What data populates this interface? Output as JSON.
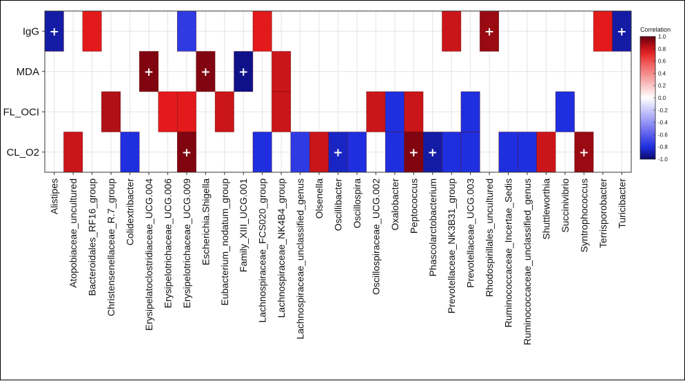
{
  "chart_data": {
    "type": "heatmap",
    "title": "",
    "xlabel": "",
    "ylabel": "",
    "rows": [
      "IgG",
      "MDA",
      "FL_OCI",
      "CL_O2"
    ],
    "columns": [
      "Alistipes",
      "Atopobiaceae_uncultured",
      "Bacteroidales_RF16_group",
      "Christensenellaceae_R.7_group",
      "Colidextribacter",
      "Erysipelatoclostridiaceae_UCG.004",
      "Erysipelotrichaceae_UCG.006",
      "Erysipelotrichaceae_UCG.009",
      "Escherichia.Shigella",
      "Eubacterium_nodatum_group",
      "Family_XIII_UCG.001",
      "Lachnospiraceae_FCS020_group",
      "Lachnospiraceae_NK4B4_group",
      "Lachnospiraceae_unclassified_genus",
      "Olsenella",
      "Oscillibacter",
      "Oscillospira",
      "Oscillospiraceae_UCG.002",
      "Oxalobacter",
      "Peptococcus",
      "Phascolarctobacterium",
      "Prevotellaceae_NK3B31_group",
      "Prevotellaceae_UCG.003",
      "Rhodospirillales_uncultured",
      "Ruminococcaceae_Incertae_Sedis",
      "Ruminococcaceae_unclassified_genus",
      "Shuttleworthia",
      "Succinivibrio",
      "Syntrophococcus",
      "Terrisporobacter",
      "Turicibacter"
    ],
    "cells": [
      {
        "row": "IgG",
        "col": "Alistipes",
        "value": -0.9,
        "mark": "+"
      },
      {
        "row": "IgG",
        "col": "Bacteroidales_RF16_group",
        "value": 0.75
      },
      {
        "row": "IgG",
        "col": "Erysipelotrichaceae_UCG.009",
        "value": -0.75
      },
      {
        "row": "IgG",
        "col": "Lachnospiraceae_FCS020_group",
        "value": 0.75
      },
      {
        "row": "IgG",
        "col": "Prevotellaceae_NK3B31_group",
        "value": 0.8
      },
      {
        "row": "IgG",
        "col": "Rhodospirillales_uncultured",
        "value": 0.9,
        "mark": "+"
      },
      {
        "row": "IgG",
        "col": "Terrisporobacter",
        "value": 0.75
      },
      {
        "row": "IgG",
        "col": "Turicibacter",
        "value": -0.9,
        "mark": "+"
      },
      {
        "row": "MDA",
        "col": "Erysipelatoclostridiaceae_UCG.004",
        "value": 0.95,
        "mark": "+"
      },
      {
        "row": "MDA",
        "col": "Escherichia.Shigella",
        "value": 0.95,
        "mark": "+"
      },
      {
        "row": "MDA",
        "col": "Family_XIII_UCG.001",
        "value": -0.95,
        "mark": "+"
      },
      {
        "row": "MDA",
        "col": "Lachnospiraceae_NK4B4_group",
        "value": 0.8
      },
      {
        "row": "FL_OCI",
        "col": "Christensenellaceae_R.7_group",
        "value": 0.85
      },
      {
        "row": "FL_OCI",
        "col": "Erysipelotrichaceae_UCG.006",
        "value": 0.75
      },
      {
        "row": "FL_OCI",
        "col": "Erysipelotrichaceae_UCG.009",
        "value": 0.75
      },
      {
        "row": "FL_OCI",
        "col": "Eubacterium_nodatum_group",
        "value": 0.8
      },
      {
        "row": "FL_OCI",
        "col": "Lachnospiraceae_NK4B4_group",
        "value": 0.8
      },
      {
        "row": "FL_OCI",
        "col": "Oscillospiraceae_UCG.002",
        "value": 0.8
      },
      {
        "row": "FL_OCI",
        "col": "Oxalobacter",
        "value": -0.8
      },
      {
        "row": "FL_OCI",
        "col": "Peptococcus",
        "value": 0.8
      },
      {
        "row": "FL_OCI",
        "col": "Prevotellaceae_UCG.003",
        "value": -0.8
      },
      {
        "row": "FL_OCI",
        "col": "Succinivibrio",
        "value": -0.8
      },
      {
        "row": "CL_O2",
        "col": "Atopobiaceae_uncultured",
        "value": 0.8
      },
      {
        "row": "CL_O2",
        "col": "Colidextribacter",
        "value": -0.8
      },
      {
        "row": "CL_O2",
        "col": "Erysipelotrichaceae_UCG.009",
        "value": 0.95,
        "mark": "+"
      },
      {
        "row": "CL_O2",
        "col": "Lachnospiraceae_FCS020_group",
        "value": -0.8
      },
      {
        "row": "CL_O2",
        "col": "Lachnospiraceae_unclassified_genus",
        "value": -0.75
      },
      {
        "row": "CL_O2",
        "col": "Olsenella",
        "value": 0.8
      },
      {
        "row": "CL_O2",
        "col": "Oscillibacter",
        "value": -0.85,
        "mark": "+"
      },
      {
        "row": "CL_O2",
        "col": "Oscillospira",
        "value": -0.8
      },
      {
        "row": "CL_O2",
        "col": "Oxalobacter",
        "value": -0.8
      },
      {
        "row": "CL_O2",
        "col": "Peptococcus",
        "value": 0.95,
        "mark": "+"
      },
      {
        "row": "CL_O2",
        "col": "Phascolarctobacterium",
        "value": -0.9,
        "mark": "+"
      },
      {
        "row": "CL_O2",
        "col": "Prevotellaceae_NK3B31_group",
        "value": -0.8
      },
      {
        "row": "CL_O2",
        "col": "Prevotellaceae_UCG.003",
        "value": -0.8
      },
      {
        "row": "CL_O2",
        "col": "Ruminococcaceae_Incertae_Sedis",
        "value": -0.8
      },
      {
        "row": "CL_O2",
        "col": "Ruminococcaceae_unclassified_genus",
        "value": -0.8
      },
      {
        "row": "CL_O2",
        "col": "Shuttleworthia",
        "value": 0.8
      },
      {
        "row": "CL_O2",
        "col": "Syntrophococcus",
        "value": 0.9,
        "mark": "+"
      }
    ],
    "legend": {
      "title": "Correlation",
      "ticks": [
        "1.0",
        "0.8",
        "0.6",
        "0.4",
        "0.2",
        "0.0",
        "-0.2",
        "-0.4",
        "-0.6",
        "-0.8",
        "-1.0"
      ],
      "range": [
        -1.0,
        1.0
      ],
      "placement": "right"
    },
    "grid": true,
    "colors": {
      "high": "#67000d",
      "mid_high": "#e31a1c",
      "zero": "#ffffff",
      "mid_low": "#1f2fe0",
      "low": "#08086b",
      "grid": "#e3e3e3",
      "plus": "#ffffff"
    }
  }
}
